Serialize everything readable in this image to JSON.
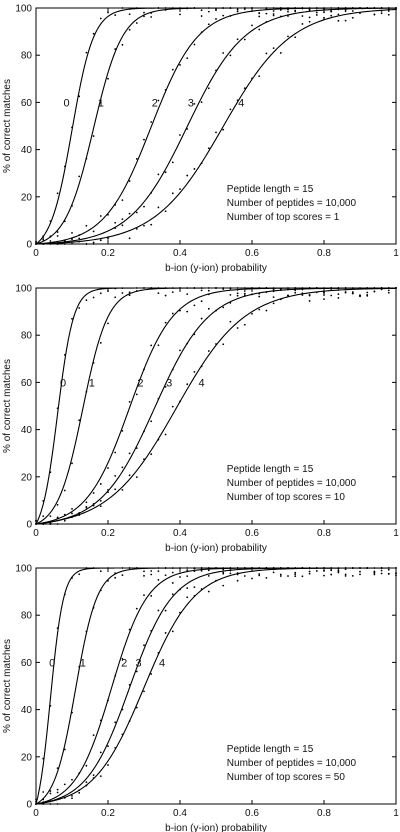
{
  "chart_data": [
    {
      "type": "line",
      "xlabel": "b-ion (y-ion) probability",
      "ylabel": "% of correct matches",
      "xlim": [
        0,
        1
      ],
      "ylim": [
        0,
        100
      ],
      "xticks": [
        "0",
        "0.2",
        "0.4",
        "0.6",
        "0.8",
        "1"
      ],
      "yticks": [
        "0",
        "20",
        "40",
        "60",
        "80",
        "100"
      ],
      "annotations": [
        "Peptide length = 15",
        "Number of peptides = 10,000",
        "Number of top scores = 1"
      ],
      "series": [
        {
          "label": "0",
          "label_x": 0.085,
          "label_y": 60,
          "midpoint": 0.1,
          "slope": 0.03
        },
        {
          "label": "1",
          "label_x": 0.18,
          "label_y": 60,
          "midpoint": 0.16,
          "slope": 0.04
        },
        {
          "label": "2",
          "label_x": 0.33,
          "label_y": 60,
          "midpoint": 0.32,
          "slope": 0.065
        },
        {
          "label": "3",
          "label_x": 0.43,
          "label_y": 60,
          "midpoint": 0.42,
          "slope": 0.08
        },
        {
          "label": "4",
          "label_x": 0.57,
          "label_y": 60,
          "midpoint": 0.52,
          "slope": 0.095
        }
      ]
    },
    {
      "type": "line",
      "xlabel": "b-ion (y-ion) probability",
      "ylabel": "% of correct matches",
      "xlim": [
        0,
        1
      ],
      "ylim": [
        0,
        100
      ],
      "xticks": [
        "0",
        "0.2",
        "0.4",
        "0.6",
        "0.8",
        "1"
      ],
      "yticks": [
        "0",
        "20",
        "40",
        "60",
        "80",
        "100"
      ],
      "annotations": [
        "Peptide length = 15",
        "Number of peptides = 10,000",
        "Number of top scores = 10"
      ],
      "series": [
        {
          "label": "0",
          "label_x": 0.075,
          "label_y": 60,
          "midpoint": 0.06,
          "slope": 0.022
        },
        {
          "label": "1",
          "label_x": 0.155,
          "label_y": 60,
          "midpoint": 0.13,
          "slope": 0.035
        },
        {
          "label": "2",
          "label_x": 0.29,
          "label_y": 60,
          "midpoint": 0.26,
          "slope": 0.06
        },
        {
          "label": "3",
          "label_x": 0.37,
          "label_y": 60,
          "midpoint": 0.33,
          "slope": 0.075
        },
        {
          "label": "4",
          "label_x": 0.46,
          "label_y": 60,
          "midpoint": 0.39,
          "slope": 0.095
        }
      ]
    },
    {
      "type": "line",
      "xlabel": "b-ion (y-ion) probability",
      "ylabel": "% of correct matches",
      "xlim": [
        0,
        1
      ],
      "ylim": [
        0,
        100
      ],
      "xticks": [
        "0",
        "0.2",
        "0.4",
        "0.6",
        "0.8",
        "1"
      ],
      "yticks": [
        "0",
        "20",
        "40",
        "60",
        "80",
        "100"
      ],
      "annotations": [
        "Peptide length = 15",
        "Number of peptides = 10,000",
        "Number of top scores = 50"
      ],
      "series": [
        {
          "label": "0",
          "label_x": 0.045,
          "label_y": 60,
          "midpoint": 0.04,
          "slope": 0.018
        },
        {
          "label": "1",
          "label_x": 0.13,
          "label_y": 60,
          "midpoint": 0.11,
          "slope": 0.03
        },
        {
          "label": "2",
          "label_x": 0.245,
          "label_y": 60,
          "midpoint": 0.21,
          "slope": 0.05
        },
        {
          "label": "3",
          "label_x": 0.285,
          "label_y": 60,
          "midpoint": 0.26,
          "slope": 0.06
        },
        {
          "label": "4",
          "label_x": 0.35,
          "label_y": 60,
          "midpoint": 0.3,
          "slope": 0.07
        }
      ]
    }
  ]
}
